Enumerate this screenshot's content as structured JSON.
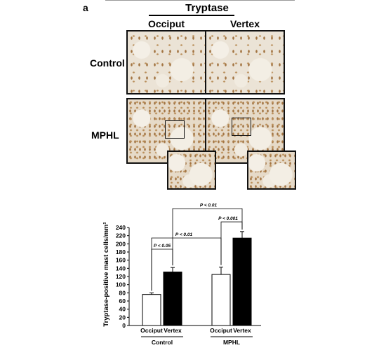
{
  "panel_letter": "a",
  "stain_title": "Tryptase",
  "columns": {
    "left": "Occiput",
    "right": "Vertex"
  },
  "rows": {
    "top": "Control",
    "bottom": "MPHL"
  },
  "chart_data": {
    "type": "bar",
    "ylabel": "Tryptase-positive mast cells/mm²",
    "ylim": [
      0,
      240
    ],
    "yticks": [
      0,
      20,
      40,
      60,
      80,
      100,
      120,
      140,
      160,
      180,
      200,
      220,
      240
    ],
    "groups": [
      "Control",
      "MPHL"
    ],
    "categories": [
      "Occiput",
      "Vertex"
    ],
    "series": [
      {
        "group": "Control",
        "values": [
          76,
          131
        ],
        "errors": [
          4,
          11
        ]
      },
      {
        "group": "MPHL",
        "values": [
          125,
          214
        ],
        "errors": [
          18,
          16
        ]
      }
    ],
    "bar_colors": [
      "#ffffff",
      "#000000"
    ],
    "annotations": [
      "P < 0.05",
      "P < 0.001",
      "P < 0.01",
      "P < 0.01"
    ]
  }
}
